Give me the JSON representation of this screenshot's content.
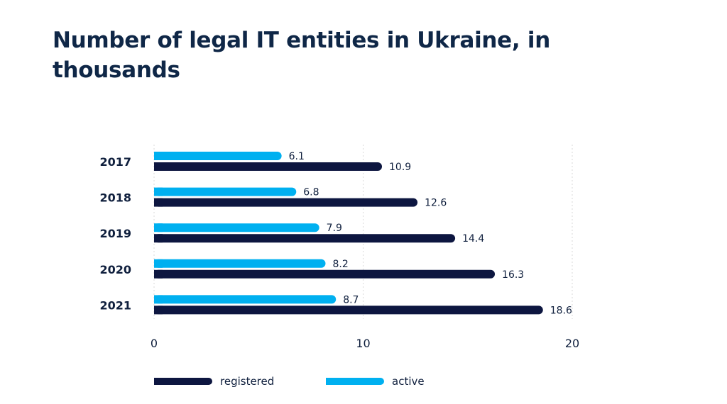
{
  "title": "Number of legal IT entities in Ukraine, in thousands",
  "colors": {
    "registered": "#0d1640",
    "active": "#00b0f0",
    "grid": "#d9d9d9",
    "text": "#0f1f3d"
  },
  "chart_data": {
    "type": "bar",
    "orientation": "horizontal",
    "title": "Number of legal IT entities in Ukraine, in thousands",
    "categories": [
      "2017",
      "2018",
      "2019",
      "2020",
      "2021"
    ],
    "series": [
      {
        "name": "active",
        "values": [
          6.1,
          6.8,
          7.9,
          8.2,
          8.7
        ]
      },
      {
        "name": "registered",
        "values": [
          10.9,
          12.6,
          14.4,
          16.3,
          18.6
        ]
      }
    ],
    "xticks": [
      0,
      10,
      20
    ],
    "xlim": [
      0,
      20
    ],
    "xlabel": "",
    "ylabel": "",
    "grid": "vertical gridlines",
    "legend_position": "bottom",
    "legend_order": [
      "registered",
      "active"
    ],
    "data_labels": true
  }
}
